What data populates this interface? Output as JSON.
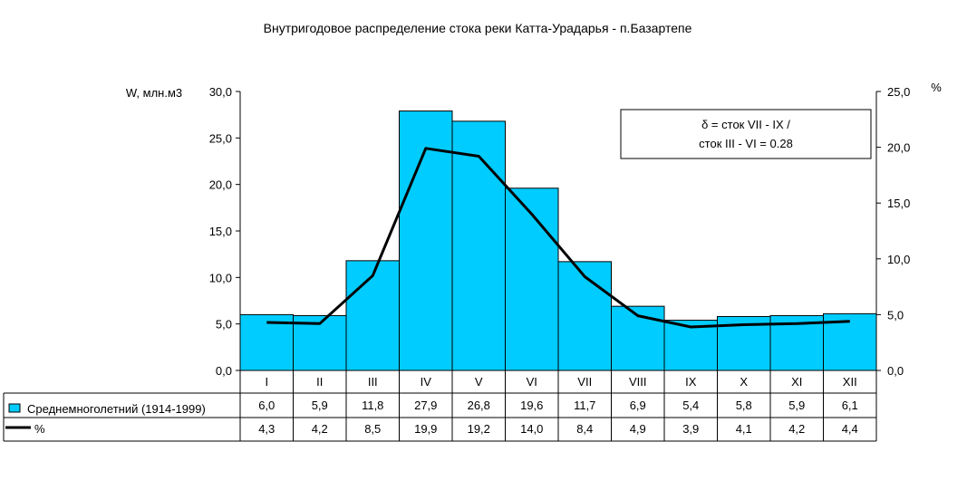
{
  "chart_data": {
    "type": "bar",
    "title": "Внутригодовое распределение стока реки Катта-Урадарья - п.Базартепе",
    "ylabel_left": "W, млн.м3",
    "ylabel_right": "%",
    "categories": [
      "I",
      "II",
      "III",
      "IV",
      "V",
      "VI",
      "VII",
      "VIII",
      "IX",
      "X",
      "XI",
      "XII"
    ],
    "ylim_left": [
      0,
      30
    ],
    "yticks_left": [
      "0,0",
      "5,0",
      "10,0",
      "15,0",
      "20,0",
      "25,0",
      "30,0"
    ],
    "ylim_right": [
      0,
      25
    ],
    "yticks_right": [
      "0,0",
      "5,0",
      "10,0",
      "15,0",
      "20,0",
      "25,0"
    ],
    "grid": false,
    "series": [
      {
        "name": "Среднемноголетний (1914-1999)",
        "type": "bar",
        "axis": "left",
        "color": "#00CCFF",
        "values": [
          6.0,
          5.9,
          11.8,
          27.9,
          26.8,
          19.6,
          11.7,
          6.9,
          5.4,
          5.8,
          5.9,
          6.1
        ],
        "labels": [
          "6,0",
          "5,9",
          "11,8",
          "27,9",
          "26,8",
          "19,6",
          "11,7",
          "6,9",
          "5,4",
          "5,8",
          "5,9",
          "6,1"
        ]
      },
      {
        "name": "%",
        "type": "line",
        "axis": "right",
        "color": "#000000",
        "values": [
          4.3,
          4.2,
          8.5,
          19.9,
          19.2,
          14.0,
          8.4,
          4.9,
          3.9,
          4.1,
          4.2,
          4.4
        ],
        "labels": [
          "4,3",
          "4,2",
          "8,5",
          "19,9",
          "19,2",
          "14,0",
          "8,4",
          "4,9",
          "3,9",
          "4,1",
          "4,2",
          "4,4"
        ]
      }
    ],
    "annotation_lines": [
      "δ = сток VII - IX /",
      "сток III - VI = 0.28"
    ],
    "legend": "data-table"
  }
}
